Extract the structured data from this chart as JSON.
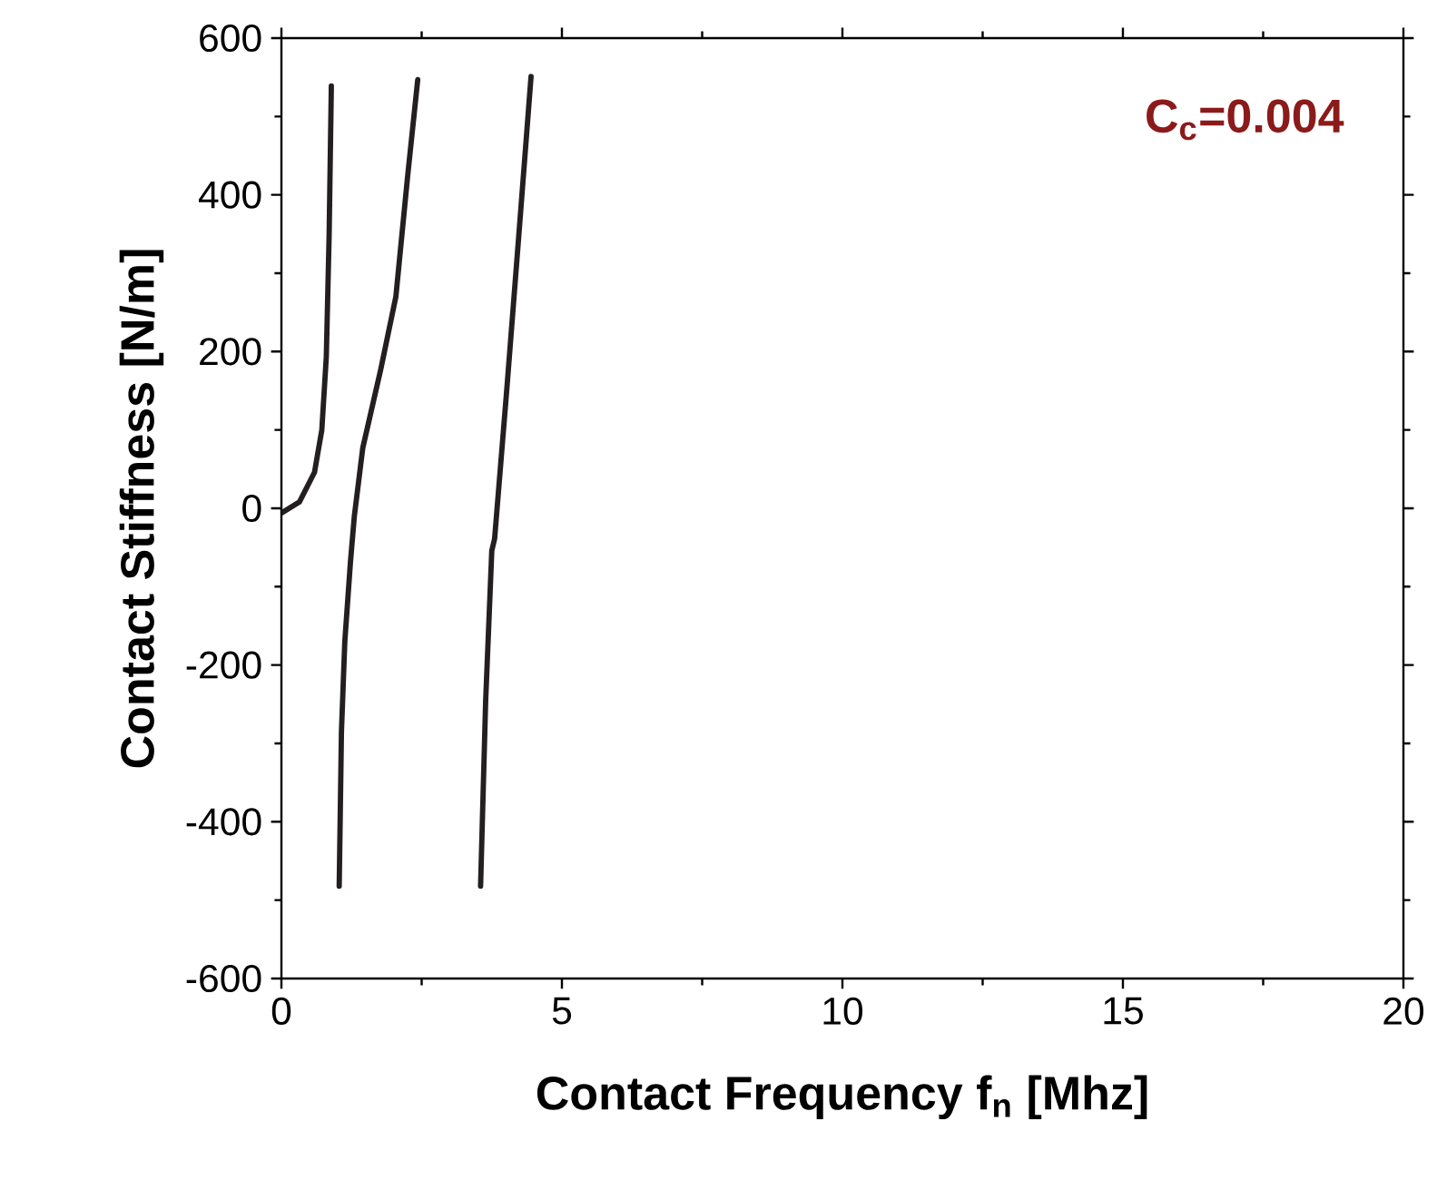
{
  "chart_data": {
    "type": "line",
    "xlabel": "Contact Frequency f$_{n}$  [Mhz]",
    "ylabel": "Contact Stiffness  [N/m]",
    "annotations": [
      "C$_{c}$=0.004"
    ],
    "series": [
      {
        "color": "#231f20",
        "x": [
          0,
          0.32,
          0.59,
          0.72,
          0.8,
          0.85,
          0.89
        ],
        "values": [
          -6,
          8,
          46,
          100,
          193,
          347,
          539
        ]
      },
      {
        "color": "#231f20",
        "x": [
          1.03,
          1.07,
          1.13,
          1.23,
          1.3,
          1.45,
          1.77,
          2.04,
          2.25,
          2.43
        ],
        "values": [
          -482,
          -285,
          -170,
          -69,
          -10,
          77,
          177,
          270,
          424,
          547
        ]
      },
      {
        "color": "#231f20",
        "x": [
          3.55,
          3.64,
          3.75,
          3.8,
          4.02,
          4.23,
          4.45
        ],
        "values": [
          -482,
          -247,
          -54,
          -39,
          154,
          347,
          551
        ]
      }
    ],
    "xlim": [
      0,
      20
    ],
    "ylim": [
      -600,
      600
    ],
    "xticks": [
      0,
      5,
      10,
      15,
      20
    ],
    "yticks": [
      -600,
      -400,
      -200,
      0,
      200,
      400,
      600
    ],
    "line_style": "solid"
  }
}
